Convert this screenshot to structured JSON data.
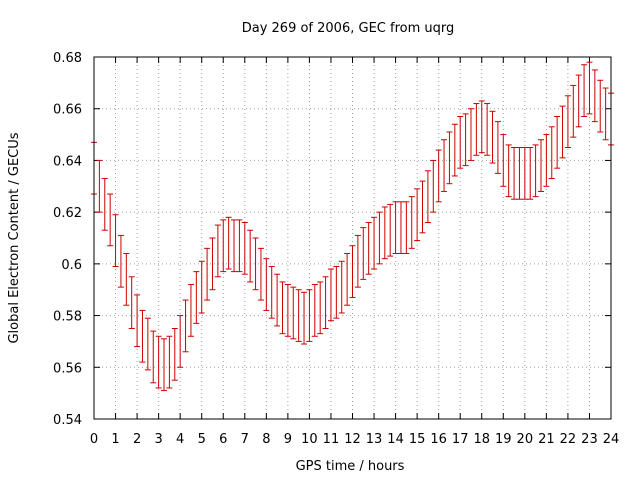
{
  "chart_data": {
    "type": "scatter",
    "title": "Day 269 of 2006, GEC from uqrg",
    "xlabel": "GPS time / hours",
    "ylabel": "Global Electron Content / GECUs",
    "xlim": [
      0,
      24
    ],
    "ylim": [
      0.54,
      0.68
    ],
    "x_ticks": [
      "0",
      "1",
      "2",
      "3",
      "4",
      "5",
      "6",
      "7",
      "8",
      "9",
      "10",
      "11",
      "12",
      "13",
      "14",
      "15",
      "16",
      "17",
      "18",
      "19",
      "20",
      "21",
      "22",
      "23",
      "24"
    ],
    "y_ticks": [
      "0.54",
      "0.56",
      "0.58",
      "0.6",
      "0.62",
      "0.64",
      "0.66",
      "0.68"
    ],
    "grid": true,
    "error_bar_color": "#cc0000",
    "series": [
      {
        "style": "error_bars",
        "x": [
          0,
          0.25,
          0.5,
          0.75,
          1,
          1.25,
          1.5,
          1.75,
          2,
          2.25,
          2.5,
          2.75,
          3,
          3.25,
          3.5,
          3.75,
          4,
          4.25,
          4.5,
          4.75,
          5,
          5.25,
          5.5,
          5.75,
          6,
          6.25,
          6.5,
          6.75,
          7,
          7.25,
          7.5,
          7.75,
          8,
          8.25,
          8.5,
          8.75,
          9,
          9.25,
          9.5,
          9.75,
          10,
          10.25,
          10.5,
          10.75,
          11,
          11.25,
          11.5,
          11.75,
          12,
          12.25,
          12.5,
          12.75,
          13,
          13.25,
          13.5,
          13.75,
          14,
          14.25,
          14.5,
          14.75,
          15,
          15.25,
          15.5,
          15.75,
          16,
          16.25,
          16.5,
          16.75,
          17,
          17.25,
          17.5,
          17.75,
          18,
          18.25,
          18.5,
          18.75,
          19,
          19.25,
          19.5,
          19.75,
          20,
          20.25,
          20.5,
          20.75,
          21,
          21.25,
          21.5,
          21.75,
          22,
          22.25,
          22.5,
          22.75,
          23,
          23.25,
          23.5,
          23.75,
          24
        ],
        "y": [
          0.637,
          0.63,
          0.623,
          0.617,
          0.609,
          0.601,
          0.594,
          0.585,
          0.578,
          0.572,
          0.569,
          0.564,
          0.562,
          0.561,
          0.562,
          0.565,
          0.57,
          0.576,
          0.582,
          0.587,
          0.591,
          0.596,
          0.6,
          0.605,
          0.607,
          0.608,
          0.607,
          0.607,
          0.606,
          0.603,
          0.6,
          0.596,
          0.592,
          0.589,
          0.586,
          0.583,
          0.582,
          0.581,
          0.58,
          0.579,
          0.58,
          0.582,
          0.583,
          0.585,
          0.588,
          0.589,
          0.591,
          0.594,
          0.597,
          0.601,
          0.604,
          0.606,
          0.608,
          0.61,
          0.612,
          0.613,
          0.614,
          0.614,
          0.614,
          0.616,
          0.619,
          0.622,
          0.626,
          0.63,
          0.634,
          0.638,
          0.641,
          0.644,
          0.647,
          0.648,
          0.65,
          0.652,
          0.653,
          0.652,
          0.649,
          0.645,
          0.64,
          0.636,
          0.635,
          0.635,
          0.635,
          0.635,
          0.636,
          0.638,
          0.64,
          0.643,
          0.647,
          0.651,
          0.655,
          0.659,
          0.663,
          0.667,
          0.668,
          0.665,
          0.661,
          0.658,
          0.656
        ],
        "err": [
          0.01,
          0.01,
          0.01,
          0.01,
          0.01,
          0.01,
          0.01,
          0.01,
          0.01,
          0.01,
          0.01,
          0.01,
          0.01,
          0.01,
          0.01,
          0.01,
          0.01,
          0.01,
          0.01,
          0.01,
          0.01,
          0.01,
          0.01,
          0.01,
          0.01,
          0.01,
          0.01,
          0.01,
          0.01,
          0.01,
          0.01,
          0.01,
          0.01,
          0.01,
          0.01,
          0.01,
          0.01,
          0.01,
          0.01,
          0.01,
          0.01,
          0.01,
          0.01,
          0.01,
          0.01,
          0.01,
          0.01,
          0.01,
          0.01,
          0.01,
          0.01,
          0.01,
          0.01,
          0.01,
          0.01,
          0.01,
          0.01,
          0.01,
          0.01,
          0.01,
          0.01,
          0.01,
          0.01,
          0.01,
          0.01,
          0.01,
          0.01,
          0.01,
          0.01,
          0.01,
          0.01,
          0.01,
          0.01,
          0.01,
          0.01,
          0.01,
          0.01,
          0.01,
          0.01,
          0.01,
          0.01,
          0.01,
          0.01,
          0.01,
          0.01,
          0.01,
          0.01,
          0.01,
          0.01,
          0.01,
          0.01,
          0.01,
          0.01,
          0.01,
          0.01,
          0.01,
          0.01
        ]
      }
    ]
  }
}
